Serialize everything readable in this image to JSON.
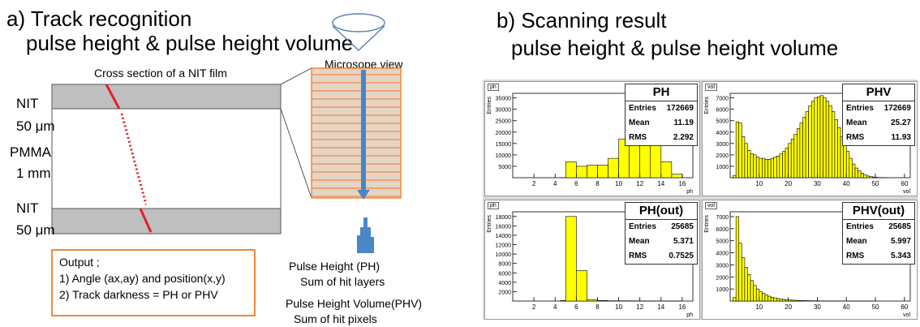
{
  "left": {
    "title": "a) Track recognition",
    "subtitle": "pulse height & pulse height volume",
    "cross_section_label": "Cross section of a NIT film",
    "microscope_label": "Microsope view",
    "layers": [
      {
        "name": "NIT",
        "thickness": "50 μm"
      },
      {
        "name": "PMMA",
        "thickness": "1 mm"
      },
      {
        "name": "NIT",
        "thickness": "50 μm"
      }
    ],
    "output": {
      "heading": "Output ;",
      "items": [
        "1) Angle (ax,ay) and position(x,y)",
        "2) Track darkness  = PH or PHV"
      ]
    },
    "ph_label": "Pulse Height (PH)",
    "ph_desc": "Sum of hit layers",
    "phv_label": "Pulse Height Volume(PHV)",
    "phv_desc": "Sum of hit pixels"
  },
  "right": {
    "title": "b)  Scanning result",
    "subtitle": "pulse height & pulse height volume"
  },
  "colors": {
    "hist_fill": "#ffff00",
    "track": "#e0202a",
    "accent": "#f0883a",
    "arrow": "#4a86c8",
    "film": "#bfbfbf"
  },
  "chart_data": [
    {
      "type": "bar",
      "tag": "ph",
      "title": "PH",
      "xlabel": "ph",
      "ylabel": "Entries",
      "stats": {
        "entries": "172669",
        "mean": "11.19",
        "rms": "2.292"
      },
      "xlim": [
        0,
        17
      ],
      "ylim": [
        0,
        37000
      ],
      "xticks": [
        "2",
        "4",
        "6",
        "8",
        "10",
        "12",
        "14",
        "16"
      ],
      "yticks": [
        "5000",
        "10000",
        "15000",
        "20000",
        "25000",
        "30000",
        "35000"
      ],
      "bins": [
        [
          4.5,
          5
        ],
        [
          5,
          7000
        ],
        [
          6,
          5000
        ],
        [
          7,
          5500
        ],
        [
          8,
          5500
        ],
        [
          9,
          8500
        ],
        [
          10,
          17000
        ],
        [
          11,
          33000
        ],
        [
          12,
          35000
        ],
        [
          13,
          15000
        ],
        [
          14,
          7000
        ],
        [
          15,
          1500
        ],
        [
          16,
          0
        ]
      ]
    },
    {
      "type": "bar",
      "tag": "vol",
      "title": "PHV",
      "xlabel": "vol",
      "ylabel": "Entries",
      "stats": {
        "entries": "172669",
        "mean": "25.27",
        "rms": "11.93"
      },
      "xlim": [
        0,
        62
      ],
      "ylim": [
        0,
        7400
      ],
      "xticks": [
        "10",
        "20",
        "30",
        "40",
        "50",
        "60"
      ],
      "yticks": [
        "1000",
        "2000",
        "3000",
        "4000",
        "5000",
        "6000",
        "7000"
      ],
      "bins": [
        [
          1,
          200
        ],
        [
          2,
          4900
        ],
        [
          3,
          4800
        ],
        [
          4,
          3600
        ],
        [
          5,
          3000
        ],
        [
          6,
          2400
        ],
        [
          7,
          2100
        ],
        [
          8,
          2000
        ],
        [
          9,
          1800
        ],
        [
          10,
          1700
        ],
        [
          11,
          1700
        ],
        [
          12,
          1600
        ],
        [
          13,
          1600
        ],
        [
          14,
          1700
        ],
        [
          15,
          1800
        ],
        [
          16,
          1900
        ],
        [
          17,
          2100
        ],
        [
          18,
          2300
        ],
        [
          19,
          2600
        ],
        [
          20,
          3000
        ],
        [
          21,
          3400
        ],
        [
          22,
          3800
        ],
        [
          23,
          4300
        ],
        [
          24,
          4800
        ],
        [
          25,
          5300
        ],
        [
          26,
          5800
        ],
        [
          27,
          6300
        ],
        [
          28,
          6700
        ],
        [
          29,
          7000
        ],
        [
          30,
          7100
        ],
        [
          31,
          7200
        ],
        [
          32,
          7000
        ],
        [
          33,
          6700
        ],
        [
          34,
          6300
        ],
        [
          35,
          5800
        ],
        [
          36,
          5100
        ],
        [
          37,
          4400
        ],
        [
          38,
          3600
        ],
        [
          39,
          2900
        ],
        [
          40,
          2300
        ],
        [
          41,
          1700
        ],
        [
          42,
          1200
        ],
        [
          43,
          850
        ],
        [
          44,
          600
        ],
        [
          45,
          400
        ],
        [
          46,
          250
        ],
        [
          47,
          150
        ],
        [
          48,
          100
        ],
        [
          49,
          60
        ],
        [
          50,
          30
        ],
        [
          51,
          15
        ],
        [
          52,
          8
        ],
        [
          53,
          4
        ],
        [
          54,
          0
        ]
      ]
    },
    {
      "type": "bar",
      "tag": "ph",
      "title": "PH(out)",
      "xlabel": "ph",
      "ylabel": "Entries",
      "stats": {
        "entries": "25685",
        "mean": "5.371",
        "rms": "0.7525"
      },
      "xlim": [
        0,
        17
      ],
      "ylim": [
        0,
        19000
      ],
      "xticks": [
        "2",
        "4",
        "6",
        "8",
        "10",
        "12",
        "14",
        "16"
      ],
      "yticks": [
        "2000",
        "4000",
        "6000",
        "8000",
        "10000",
        "12000",
        "14000",
        "16000",
        "18000"
      ],
      "bins": [
        [
          4.5,
          100
        ],
        [
          5,
          18000
        ],
        [
          6,
          6500
        ],
        [
          7,
          300
        ],
        [
          8,
          100
        ],
        [
          9,
          50
        ],
        [
          10,
          50
        ],
        [
          11,
          40
        ],
        [
          12,
          30
        ],
        [
          13,
          20
        ],
        [
          14,
          10
        ],
        [
          15,
          5
        ],
        [
          16,
          0
        ]
      ]
    },
    {
      "type": "bar",
      "tag": "vol",
      "title": "PHV(out)",
      "xlabel": "vol",
      "ylabel": "Entries",
      "stats": {
        "entries": "25685",
        "mean": "5.997",
        "rms": "5.343"
      },
      "xlim": [
        0,
        62
      ],
      "ylim": [
        0,
        7400
      ],
      "xticks": [
        "10",
        "20",
        "30",
        "40",
        "50",
        "60"
      ],
      "yticks": [
        "1000",
        "2000",
        "3000",
        "4000",
        "5000",
        "6000",
        "7000"
      ],
      "bins": [
        [
          1,
          300
        ],
        [
          2,
          7000
        ],
        [
          3,
          4800
        ],
        [
          4,
          3600
        ],
        [
          5,
          2800
        ],
        [
          6,
          2200
        ],
        [
          7,
          1700
        ],
        [
          8,
          1300
        ],
        [
          9,
          1000
        ],
        [
          10,
          800
        ],
        [
          11,
          650
        ],
        [
          12,
          500
        ],
        [
          13,
          400
        ],
        [
          14,
          320
        ],
        [
          15,
          260
        ],
        [
          16,
          210
        ],
        [
          17,
          170
        ],
        [
          18,
          140
        ],
        [
          19,
          110
        ],
        [
          20,
          90
        ],
        [
          21,
          75
        ],
        [
          22,
          60
        ],
        [
          23,
          50
        ],
        [
          24,
          40
        ],
        [
          25,
          35
        ],
        [
          26,
          30
        ],
        [
          27,
          25
        ],
        [
          28,
          22
        ],
        [
          29,
          20
        ],
        [
          30,
          18
        ],
        [
          31,
          15
        ],
        [
          32,
          12
        ],
        [
          33,
          10
        ],
        [
          34,
          8
        ],
        [
          35,
          6
        ],
        [
          36,
          5
        ],
        [
          38,
          4
        ],
        [
          40,
          3
        ],
        [
          42,
          2
        ],
        [
          45,
          1
        ],
        [
          50,
          0
        ]
      ]
    }
  ]
}
